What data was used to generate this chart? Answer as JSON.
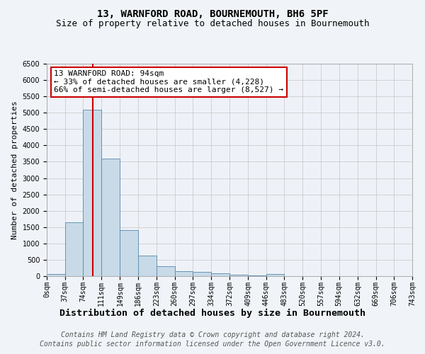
{
  "title1": "13, WARNFORD ROAD, BOURNEMOUTH, BH6 5PF",
  "title2": "Size of property relative to detached houses in Bournemouth",
  "xlabel": "Distribution of detached houses by size in Bournemouth",
  "ylabel": "Number of detached properties",
  "bin_edges": [
    0,
    37,
    74,
    111,
    149,
    186,
    223,
    260,
    297,
    334,
    372,
    409,
    446,
    483,
    520,
    557,
    594,
    632,
    669,
    706,
    743
  ],
  "bar_heights": [
    75,
    1650,
    5100,
    3600,
    1400,
    620,
    300,
    155,
    130,
    90,
    50,
    30,
    55,
    0,
    0,
    0,
    0,
    0,
    0,
    0
  ],
  "bar_color": "#c8dae8",
  "bar_edgecolor": "#5588aa",
  "vline_x": 94,
  "vline_color": "#cc0000",
  "ylim": [
    0,
    6500
  ],
  "annotation_text": "13 WARNFORD ROAD: 94sqm\n← 33% of detached houses are smaller (4,228)\n66% of semi-detached houses are larger (8,527) →",
  "annotation_box_edgecolor": "#cc0000",
  "annotation_box_facecolor": "#ffffff",
  "footer1": "Contains HM Land Registry data © Crown copyright and database right 2024.",
  "footer2": "Contains public sector information licensed under the Open Government Licence v3.0.",
  "bg_color": "#f0f4f8",
  "plot_bg_color": "#eef2f8",
  "title1_fontsize": 10,
  "title2_fontsize": 9,
  "xlabel_fontsize": 9.5,
  "ylabel_fontsize": 8,
  "tick_fontsize": 7,
  "footer_fontsize": 7,
  "annotation_fontsize": 8
}
